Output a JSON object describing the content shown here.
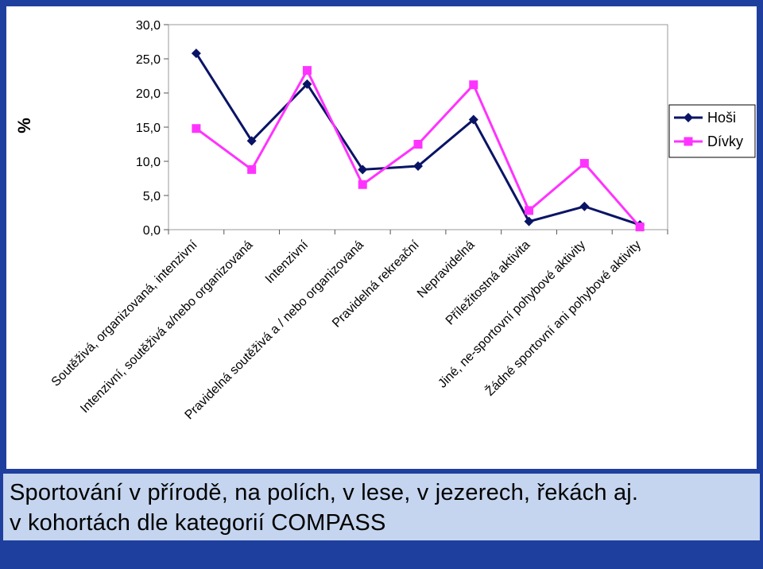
{
  "chart_data": {
    "type": "line",
    "ylabel": "%",
    "ylim": [
      0,
      30
    ],
    "yticks": [
      "30,0",
      "25,0",
      "20,0",
      "15,0",
      "10,0",
      "5,0",
      "0,0"
    ],
    "ytick_values": [
      30,
      25,
      20,
      15,
      10,
      5,
      0
    ],
    "categories": [
      "Soutěživá, organizovaná, intenzivní",
      "Intenzivní, soutěživá a/nebo organizovaná",
      "Intenzivní",
      "Pravidelná soutěživá a / nebo organizovaná",
      "Pravidelná rekreační",
      "Nepravidelná",
      "Příležitostná aktivita",
      "Jiné, ne-sportovní pohybové aktivity",
      "Žádné sportovní ani pohybové aktivity"
    ],
    "series": [
      {
        "name": "Hoši",
        "color": "#0a1466",
        "marker": "diamond",
        "values": [
          25.8,
          13.0,
          21.3,
          8.8,
          9.3,
          16.1,
          1.2,
          3.4,
          0.7
        ]
      },
      {
        "name": "Dívky",
        "color": "#ff33ff",
        "marker": "square",
        "values": [
          14.8,
          8.8,
          23.3,
          6.6,
          12.5,
          21.2,
          2.8,
          9.7,
          0.4
        ]
      }
    ],
    "legend_position": "right",
    "grid": false
  },
  "caption": {
    "line1": "Sportování v přírodě, na polích, v lese, v jezerech, řekách aj.",
    "line2": "v kohortách dle kategorií COMPASS"
  },
  "colors": {
    "frame": "#1f3f9f",
    "caption_bg": "#c5d5ef",
    "panel": "#ffffff"
  }
}
